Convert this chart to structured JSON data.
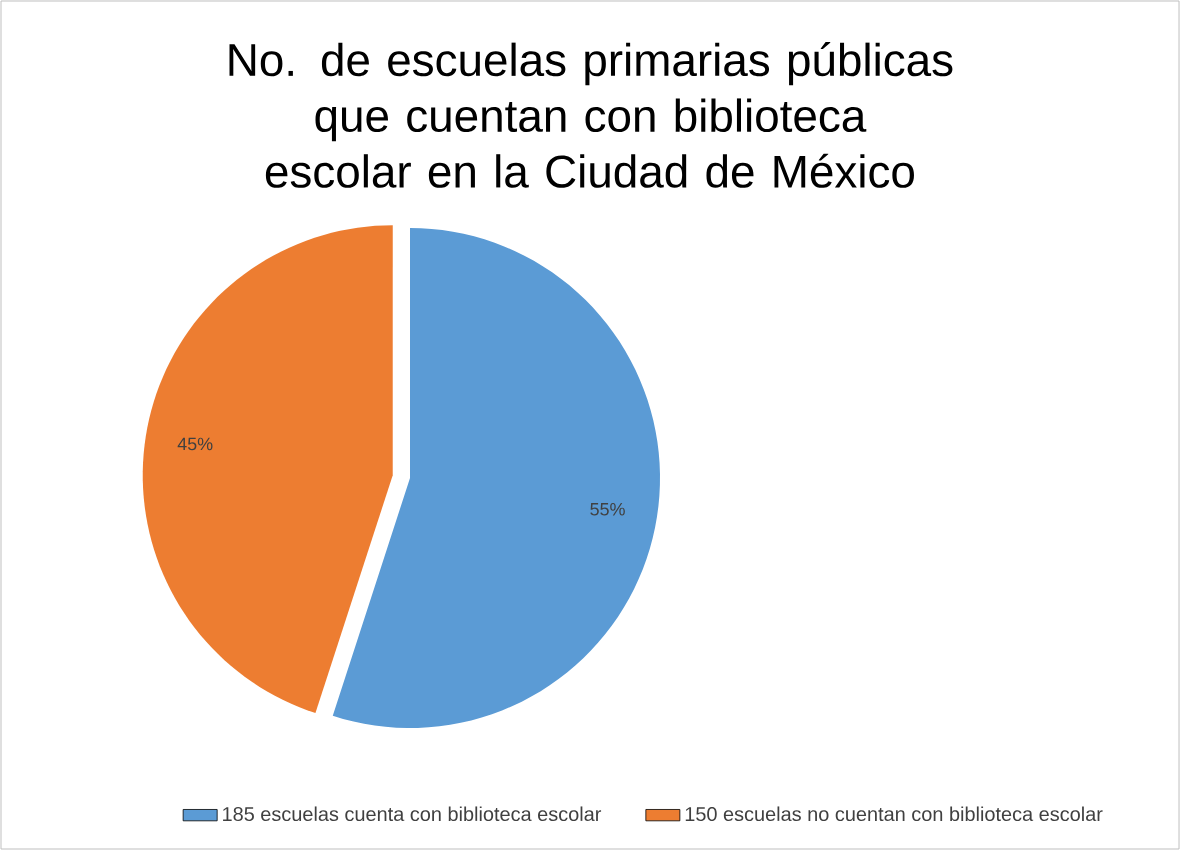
{
  "chart_data": {
    "type": "pie",
    "title": "No. de escuelas  primarias públicas que cuentan con biblioteca escolar en la Ciudad de México",
    "categories": [
      "185 escuelas  cuenta con biblioteca escolar",
      "150 escuelas  no cuentan con biblioteca escolar"
    ],
    "values": [
      55,
      45
    ],
    "colors": [
      "#5b9bd5",
      "#ed7d31"
    ],
    "value_labels": [
      "55%",
      "45%"
    ],
    "legend": "bottom"
  }
}
